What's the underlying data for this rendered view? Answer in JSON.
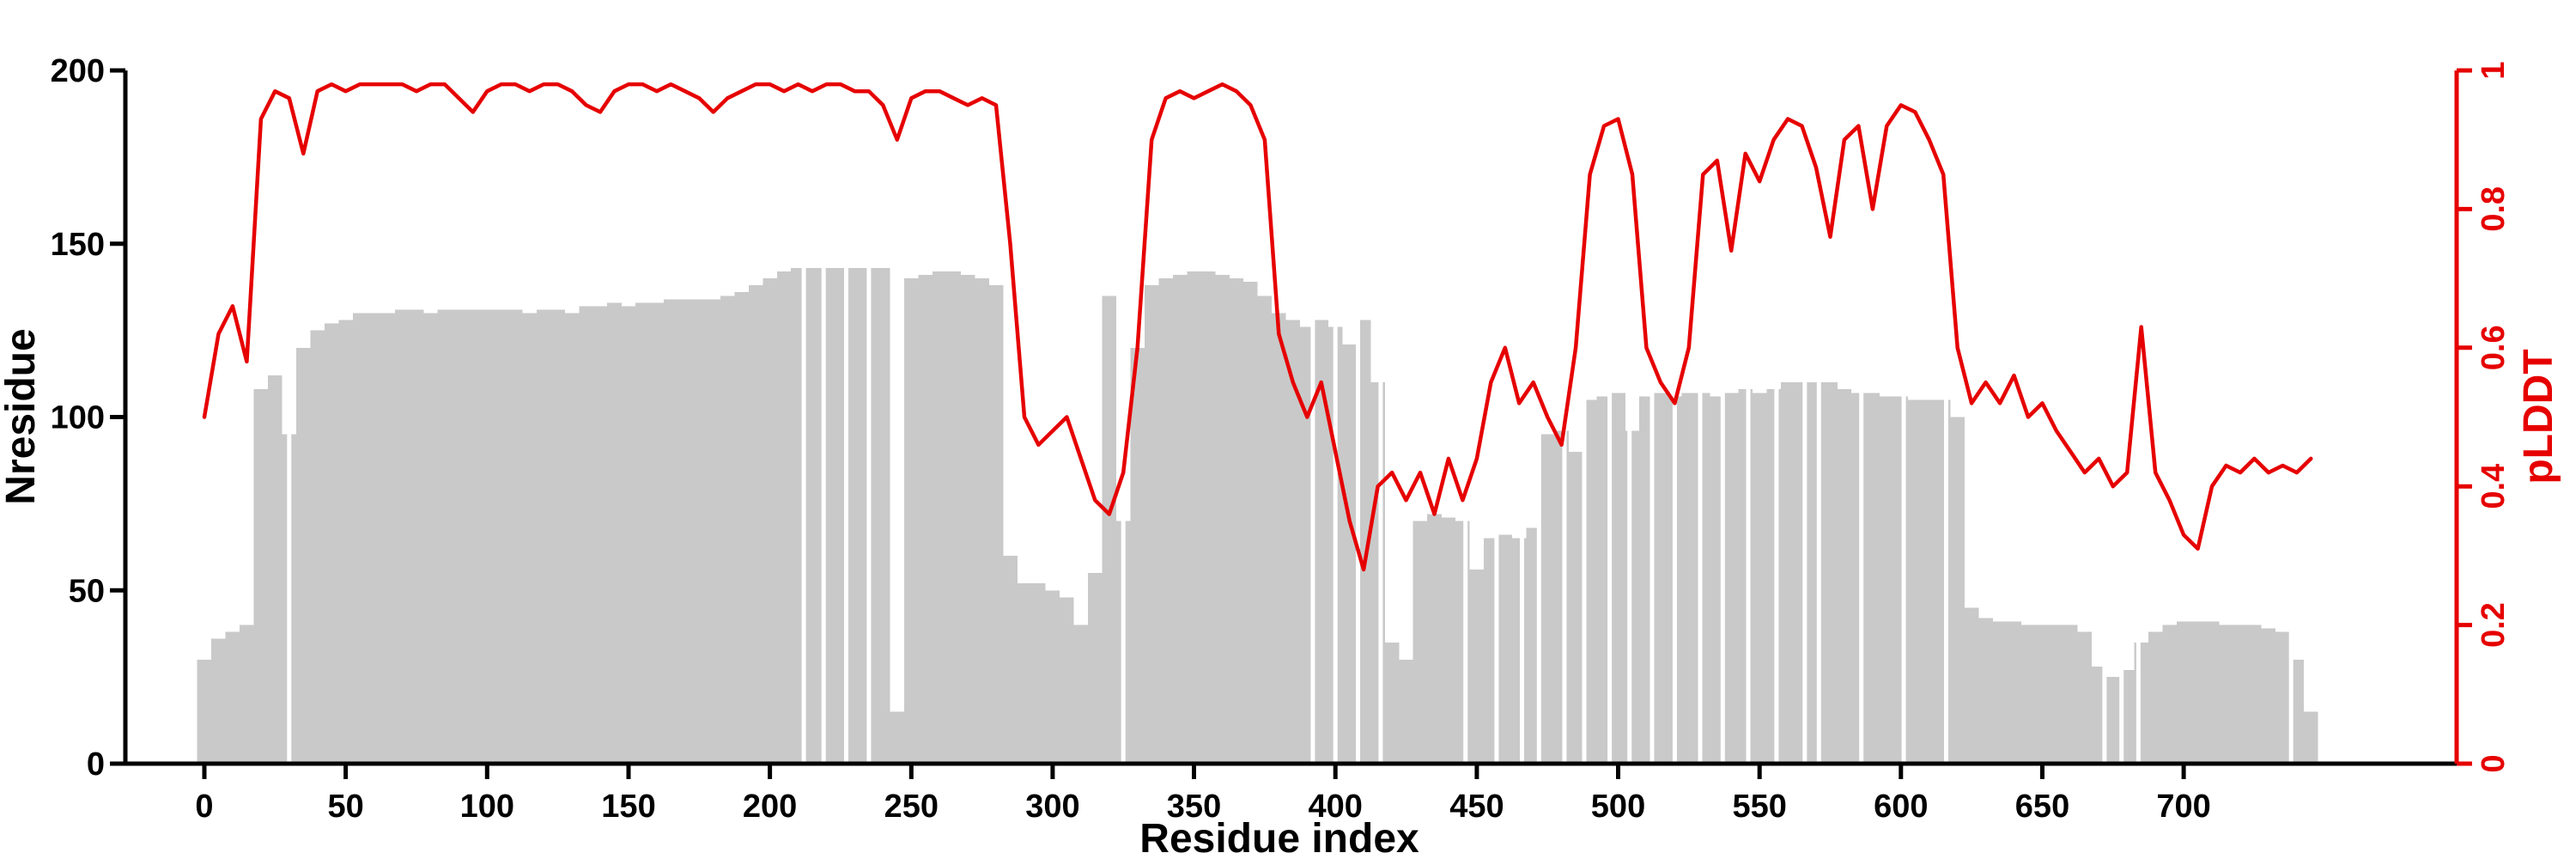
{
  "chart_data": {
    "type": "bar+line",
    "title": "",
    "xlabel": "Residue index",
    "x_start": 0,
    "x_step": 5,
    "x_end": 745,
    "xlim": [
      0,
      745
    ],
    "xticks": [
      0,
      50,
      100,
      150,
      200,
      250,
      300,
      350,
      400,
      450,
      500,
      550,
      600,
      650,
      700
    ],
    "left_axis": {
      "label": "Nresidue",
      "lim": [
        0,
        200
      ],
      "ticks": [
        0,
        50,
        100,
        150,
        200
      ],
      "color": "#000000"
    },
    "right_axis": {
      "label": "pLDDT",
      "lim": [
        0,
        1
      ],
      "ticks": [
        0,
        0.2,
        0.4,
        0.6,
        0.8,
        1
      ],
      "tick_labels": [
        "0",
        "0.2",
        "0.4",
        "0.6",
        "0.8",
        "1"
      ],
      "color": "#e60000"
    },
    "grid": false,
    "legend": false,
    "series": [
      {
        "name": "Nresidue",
        "type": "bar",
        "axis": "left",
        "color": "#c9c9c9",
        "values": [
          30,
          36,
          38,
          40,
          108,
          112,
          95,
          120,
          125,
          127,
          128,
          130,
          130,
          130,
          131,
          131,
          130,
          131,
          131,
          131,
          131,
          131,
          131,
          130,
          131,
          131,
          130,
          132,
          132,
          133,
          132,
          133,
          133,
          134,
          134,
          134,
          134,
          135,
          136,
          138,
          140,
          142,
          143,
          143,
          143,
          143,
          143,
          143,
          143,
          15,
          140,
          141,
          142,
          142,
          141,
          140,
          138,
          60,
          52,
          52,
          50,
          48,
          40,
          55,
          135,
          70,
          120,
          138,
          140,
          141,
          142,
          142,
          141,
          140,
          139,
          135,
          130,
          128,
          126,
          128,
          126,
          121,
          128,
          110,
          35,
          30,
          70,
          72,
          71,
          70,
          56,
          65,
          66,
          65,
          68,
          95,
          96,
          90,
          105,
          106,
          107,
          96,
          106,
          107,
          106,
          107,
          107,
          106,
          107,
          108,
          107,
          108,
          110,
          110,
          110,
          110,
          108,
          107,
          107,
          106,
          106,
          105,
          105,
          105,
          100,
          45,
          42,
          41,
          41,
          40,
          40,
          40,
          40,
          38,
          28,
          25,
          27,
          35,
          38,
          40,
          41,
          41,
          41,
          40,
          40,
          40,
          39,
          38,
          30,
          15
        ]
      },
      {
        "name": "pLDDT",
        "type": "line",
        "axis": "right",
        "color": "#e60000",
        "values": [
          0.5,
          0.62,
          0.66,
          0.58,
          0.93,
          0.97,
          0.96,
          0.88,
          0.97,
          0.98,
          0.97,
          0.98,
          0.98,
          0.98,
          0.98,
          0.97,
          0.98,
          0.98,
          0.96,
          0.94,
          0.97,
          0.98,
          0.98,
          0.97,
          0.98,
          0.98,
          0.97,
          0.95,
          0.94,
          0.97,
          0.98,
          0.98,
          0.97,
          0.98,
          0.97,
          0.96,
          0.94,
          0.96,
          0.97,
          0.98,
          0.98,
          0.97,
          0.98,
          0.97,
          0.98,
          0.98,
          0.97,
          0.97,
          0.95,
          0.9,
          0.96,
          0.97,
          0.97,
          0.96,
          0.95,
          0.96,
          0.95,
          0.75,
          0.5,
          0.46,
          0.48,
          0.5,
          0.44,
          0.38,
          0.36,
          0.42,
          0.6,
          0.9,
          0.96,
          0.97,
          0.96,
          0.97,
          0.98,
          0.97,
          0.95,
          0.9,
          0.62,
          0.55,
          0.5,
          0.55,
          0.45,
          0.35,
          0.28,
          0.4,
          0.42,
          0.38,
          0.42,
          0.36,
          0.44,
          0.38,
          0.44,
          0.55,
          0.6,
          0.52,
          0.55,
          0.5,
          0.46,
          0.6,
          0.85,
          0.92,
          0.93,
          0.85,
          0.6,
          0.55,
          0.52,
          0.6,
          0.85,
          0.87,
          0.74,
          0.88,
          0.84,
          0.9,
          0.93,
          0.92,
          0.86,
          0.76,
          0.9,
          0.92,
          0.8,
          0.92,
          0.95,
          0.94,
          0.9,
          0.85,
          0.6,
          0.52,
          0.55,
          0.52,
          0.56,
          0.5,
          0.52,
          0.48,
          0.45,
          0.42,
          0.44,
          0.4,
          0.42,
          0.63,
          0.42,
          0.38,
          0.33,
          0.31,
          0.4,
          0.43,
          0.42,
          0.44,
          0.42,
          0.43,
          0.42,
          0.44
        ]
      }
    ],
    "bar_gaps_x": [
      30,
      212,
      219,
      227,
      235,
      325,
      392,
      400,
      408,
      416,
      446,
      457,
      466,
      472,
      481,
      488,
      497,
      504,
      512,
      520,
      529,
      537,
      546,
      556,
      566,
      571,
      586,
      601,
      616,
      672,
      678,
      684,
      738
    ]
  }
}
